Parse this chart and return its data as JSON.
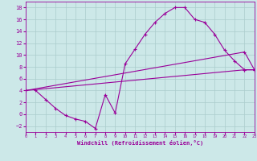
{
  "xlabel": "Windchill (Refroidissement éolien,°C)",
  "bg_color": "#cce8e8",
  "line_color": "#990099",
  "grid_color": "#aacccc",
  "xlim": [
    0,
    23
  ],
  "ylim": [
    -3,
    19
  ],
  "xticks": [
    0,
    1,
    2,
    3,
    4,
    5,
    6,
    7,
    8,
    9,
    10,
    11,
    12,
    13,
    14,
    15,
    16,
    17,
    18,
    19,
    20,
    21,
    22,
    23
  ],
  "yticks": [
    -2,
    0,
    2,
    4,
    6,
    8,
    10,
    12,
    14,
    16,
    18
  ],
  "line1_x": [
    1,
    2,
    3,
    4,
    5,
    6,
    7,
    8,
    9,
    10,
    11,
    12,
    13,
    14,
    15,
    16,
    17,
    18,
    19,
    20,
    21,
    22,
    23
  ],
  "line1_y": [
    4.0,
    2.5,
    1.0,
    -0.2,
    -0.8,
    -1.2,
    -2.4,
    3.3,
    0.2,
    8.5,
    11.0,
    13.5,
    15.5,
    17.0,
    18.0,
    18.0,
    16.0,
    15.5,
    13.5,
    10.8,
    9.0,
    7.5,
    7.5
  ],
  "line2_x": [
    0,
    22,
    23
  ],
  "line2_y": [
    4.0,
    7.5,
    7.5
  ],
  "line3_x": [
    0,
    22,
    23
  ],
  "line3_y": [
    4.0,
    10.5,
    7.5
  ],
  "marker": "+"
}
